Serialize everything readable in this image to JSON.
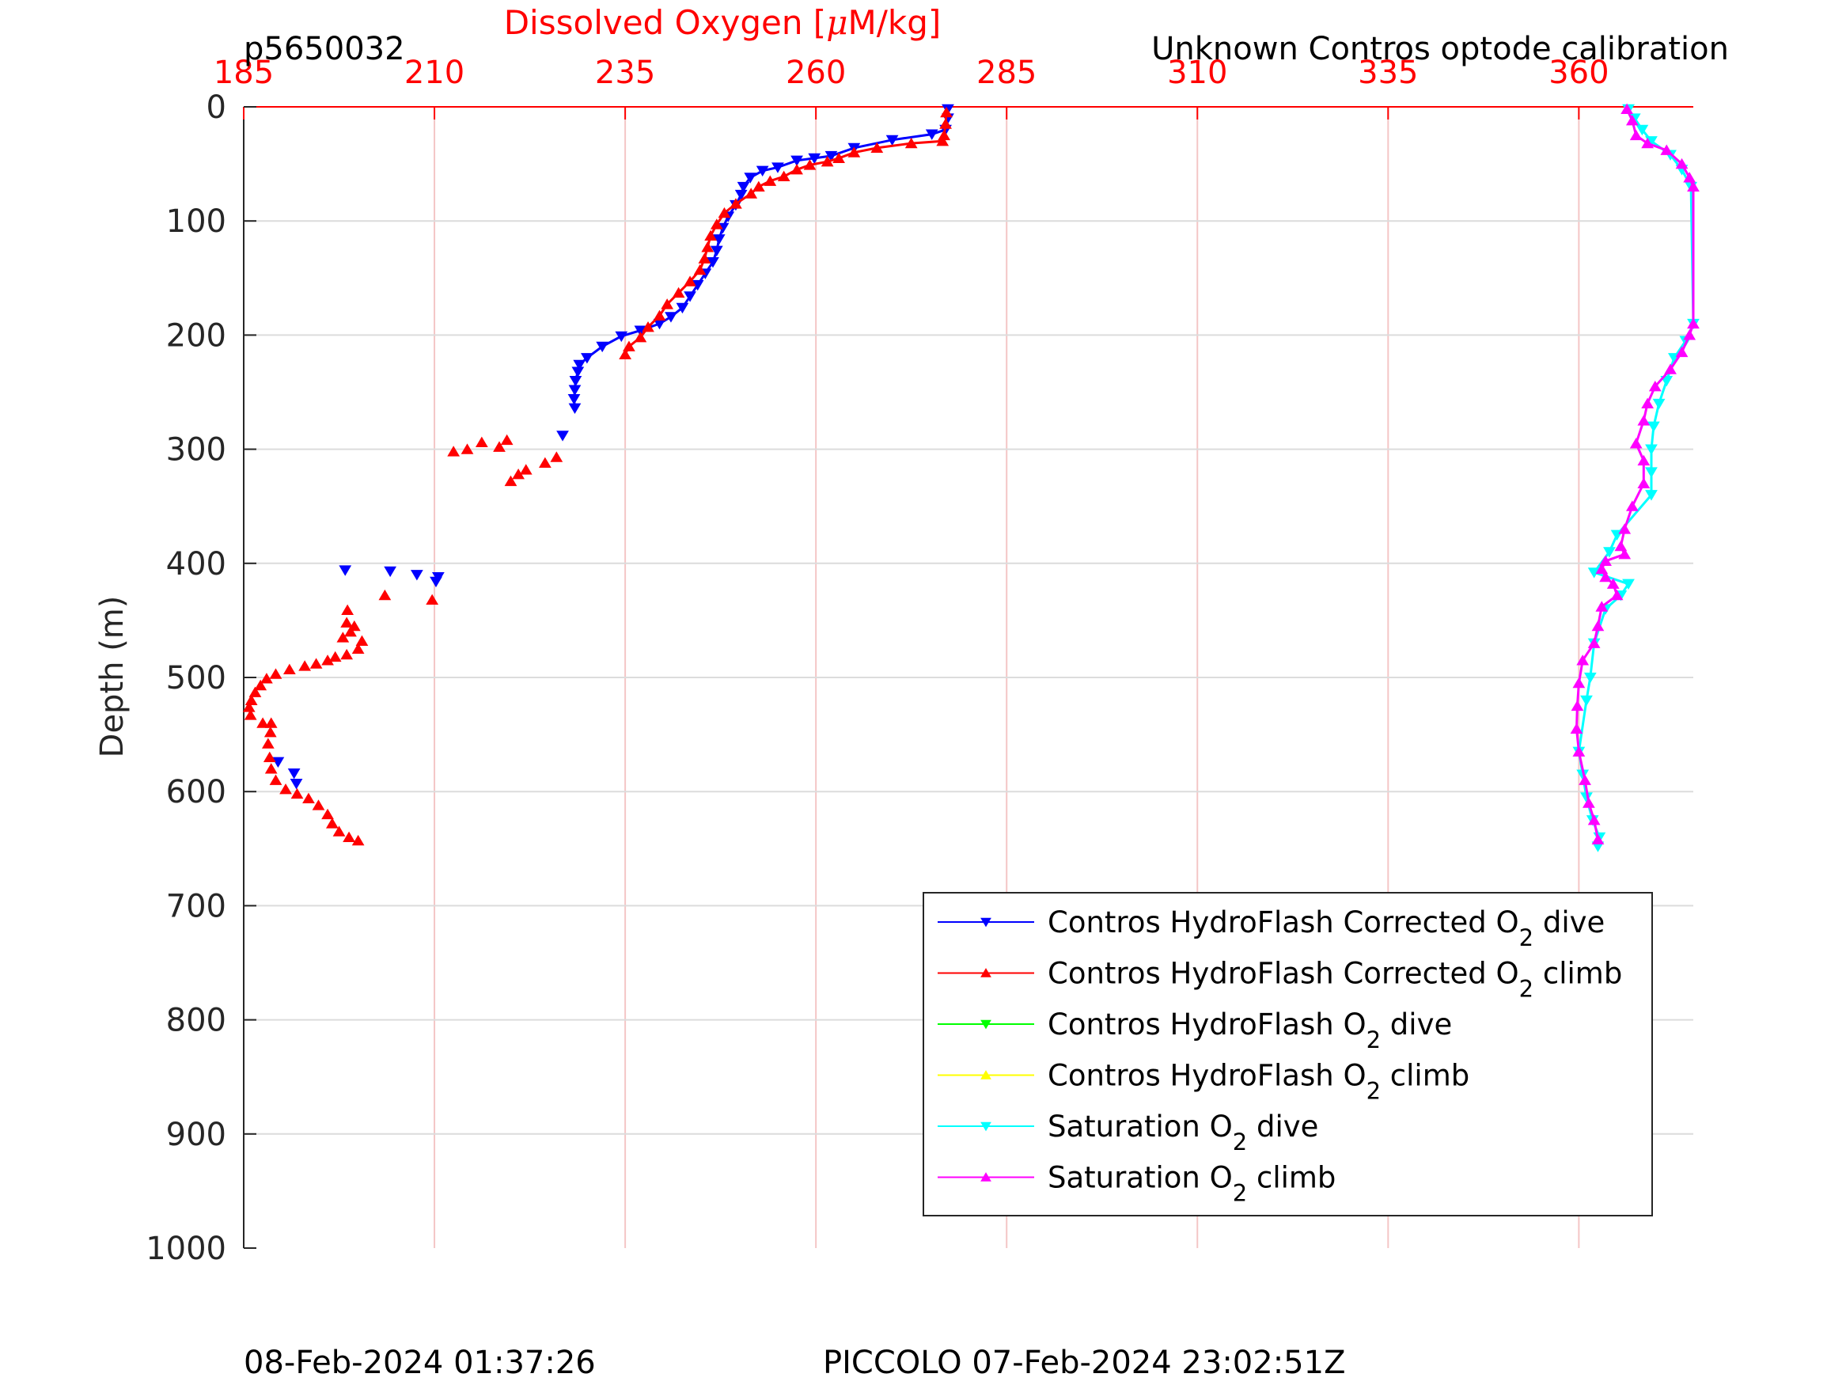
{
  "header": {
    "profile_id": "p5650032",
    "calibration_note": "Unknown Contros optode calibration"
  },
  "footer": {
    "plot_time": "08-Feb-2024 01:37:26",
    "mission_label": "PICCOLO 07-Feb-2024 23:02:51Z"
  },
  "colors": {
    "top_axis": "#ff0000",
    "grid_x": "#f4c6c6",
    "grid_y": "#dcdcdc",
    "text": "#262626"
  },
  "chart_data": {
    "type": "scatter",
    "title": "",
    "xlabel_prefix": "Dissolved Oxygen [",
    "xlabel_mu": "μ",
    "xlabel_suffix": "M/kg]",
    "ylabel": "Depth (m)",
    "xlim": [
      185,
      375
    ],
    "ylim": [
      0,
      1000
    ],
    "y_reversed": true,
    "x_axis_position": "top",
    "xticks": [
      185,
      210,
      235,
      260,
      285,
      310,
      335,
      360
    ],
    "yticks": [
      0,
      100,
      200,
      300,
      400,
      500,
      600,
      700,
      800,
      900,
      1000
    ],
    "grid": true,
    "legend_position": "lower-right",
    "series": [
      {
        "name": "Contros HydroFlash Corrected O",
        "sub": "2",
        "suffix": " dive",
        "color": "#0000ff",
        "marker": "down",
        "line": true,
        "points": [
          [
            277.3,
            2
          ],
          [
            277.3,
            10
          ],
          [
            277.0,
            20
          ],
          [
            275.2,
            24
          ],
          [
            270.0,
            29
          ],
          [
            265.0,
            36
          ],
          [
            262.0,
            43
          ],
          [
            259.8,
            45
          ],
          [
            257.5,
            47
          ],
          [
            255.0,
            53
          ],
          [
            253.0,
            56
          ],
          [
            251.4,
            62
          ],
          [
            250.5,
            70
          ],
          [
            250.2,
            77
          ],
          [
            249.5,
            86
          ],
          [
            248.5,
            96
          ],
          [
            247.8,
            106
          ],
          [
            247.3,
            116
          ],
          [
            247.0,
            126
          ],
          [
            246.5,
            136
          ],
          [
            245.5,
            146
          ],
          [
            244.5,
            156
          ],
          [
            243.5,
            166
          ],
          [
            242.5,
            176
          ],
          [
            241.0,
            184
          ],
          [
            239.5,
            190
          ],
          [
            237.0,
            196
          ],
          [
            234.5,
            201
          ],
          [
            232.0,
            210
          ],
          [
            230.0,
            220
          ],
          [
            229.0,
            226
          ],
          [
            228.8,
            232
          ],
          [
            228.5,
            240
          ],
          [
            228.4,
            248
          ],
          [
            228.3,
            256
          ],
          [
            228.4,
            264
          ]
        ],
        "sparse_points": [
          [
            226.8,
            288
          ],
          [
            198.3,
            406
          ],
          [
            204.2,
            407
          ],
          [
            207.7,
            410
          ],
          [
            210.5,
            412
          ],
          [
            210.2,
            416
          ],
          [
            189.5,
            574
          ],
          [
            191.6,
            584
          ],
          [
            191.9,
            593
          ]
        ]
      },
      {
        "name": "Contros HydroFlash Corrected O",
        "sub": "2",
        "suffix": " climb",
        "color": "#ff0000",
        "marker": "up",
        "line": true,
        "points": [
          [
            277.1,
            5
          ],
          [
            277.0,
            15
          ],
          [
            276.8,
            25
          ],
          [
            276.6,
            30
          ],
          [
            272.5,
            32
          ],
          [
            268.0,
            36
          ],
          [
            265.0,
            40
          ],
          [
            263.0,
            45
          ],
          [
            261.5,
            48
          ],
          [
            259.2,
            51
          ],
          [
            257.5,
            55
          ],
          [
            255.8,
            61
          ],
          [
            254.0,
            65
          ],
          [
            252.5,
            70
          ],
          [
            251.5,
            76
          ],
          [
            249.5,
            85
          ],
          [
            248.0,
            93
          ],
          [
            247.0,
            103
          ],
          [
            246.2,
            113
          ],
          [
            245.8,
            123
          ],
          [
            245.4,
            133
          ],
          [
            244.8,
            143
          ],
          [
            243.5,
            153
          ],
          [
            242.0,
            163
          ],
          [
            240.5,
            173
          ],
          [
            239.5,
            183
          ],
          [
            238.0,
            193
          ],
          [
            237.0,
            202
          ],
          [
            235.5,
            210
          ],
          [
            235.0,
            217
          ]
        ],
        "sparse_points": [
          [
            226.0,
            307
          ],
          [
            224.5,
            312
          ],
          [
            222.0,
            318
          ],
          [
            221.0,
            322
          ],
          [
            220.0,
            328
          ],
          [
            218.5,
            298
          ],
          [
            216.2,
            294
          ],
          [
            214.3,
            300
          ],
          [
            212.5,
            302
          ],
          [
            219.5,
            292
          ],
          [
            203.5,
            428
          ],
          [
            209.7,
            432
          ],
          [
            198.6,
            441
          ],
          [
            198.5,
            452
          ],
          [
            199.5,
            455
          ],
          [
            199.0,
            460
          ],
          [
            198.0,
            465
          ],
          [
            200.5,
            468
          ],
          [
            200.0,
            475
          ],
          [
            198.5,
            480
          ],
          [
            197.0,
            482
          ],
          [
            196.0,
            485
          ],
          [
            194.5,
            488
          ],
          [
            193.0,
            490
          ],
          [
            191.0,
            493
          ],
          [
            189.2,
            497
          ],
          [
            188.0,
            501
          ],
          [
            187.2,
            507
          ],
          [
            186.5,
            513
          ],
          [
            186.0,
            520
          ],
          [
            185.7,
            526
          ],
          [
            185.9,
            533
          ],
          [
            187.5,
            540
          ],
          [
            188.6,
            540
          ],
          [
            188.5,
            548
          ],
          [
            188.2,
            558
          ],
          [
            188.4,
            570
          ],
          [
            188.6,
            580
          ],
          [
            189.2,
            590
          ],
          [
            190.5,
            598
          ],
          [
            192.0,
            602
          ],
          [
            193.5,
            606
          ],
          [
            194.8,
            612
          ],
          [
            196.0,
            620
          ],
          [
            196.6,
            628
          ],
          [
            197.5,
            635
          ],
          [
            198.8,
            640
          ],
          [
            200.0,
            643
          ]
        ]
      },
      {
        "name": "Contros HydroFlash O",
        "sub": "2",
        "suffix": " dive",
        "color": "#00ff00",
        "marker": "down",
        "line": true,
        "points": [],
        "sparse_points": []
      },
      {
        "name": "Contros HydroFlash O",
        "sub": "2",
        "suffix": " climb",
        "color": "#ffff00",
        "marker": "up",
        "line": true,
        "points": [],
        "sparse_points": []
      },
      {
        "name": "Saturation O",
        "sub": "2",
        "suffix": " dive",
        "color": "#00ffff",
        "marker": "down",
        "line": true,
        "points": [
          [
            366.5,
            2
          ],
          [
            367.3,
            10
          ],
          [
            368.3,
            20
          ],
          [
            369.5,
            30
          ],
          [
            372.0,
            42
          ],
          [
            373.5,
            55
          ],
          [
            374.7,
            70
          ],
          [
            375.0,
            190
          ],
          [
            374.0,
            205
          ],
          [
            372.5,
            220
          ],
          [
            371.5,
            240
          ],
          [
            370.5,
            260
          ],
          [
            369.8,
            280
          ],
          [
            369.5,
            300
          ],
          [
            369.5,
            320
          ],
          [
            369.5,
            340
          ],
          [
            365.0,
            375
          ],
          [
            364.0,
            390
          ],
          [
            362.0,
            408
          ],
          [
            366.5,
            418
          ],
          [
            365.5,
            428
          ],
          [
            363.5,
            440
          ],
          [
            362.0,
            470
          ],
          [
            361.5,
            500
          ],
          [
            361.0,
            520
          ],
          [
            360.0,
            565
          ],
          [
            360.5,
            585
          ],
          [
            361.0,
            605
          ],
          [
            361.8,
            625
          ],
          [
            362.7,
            640
          ],
          [
            362.5,
            648
          ]
        ],
        "sparse_points": []
      },
      {
        "name": "Saturation O",
        "sub": "2",
        "suffix": " climb",
        "color": "#ff00ff",
        "marker": "up",
        "line": true,
        "points": [
          [
            366.3,
            2
          ],
          [
            367.0,
            12
          ],
          [
            367.5,
            25
          ],
          [
            369.0,
            32
          ],
          [
            371.5,
            38
          ],
          [
            373.5,
            50
          ],
          [
            374.5,
            62
          ],
          [
            375.0,
            70
          ],
          [
            375.0,
            190
          ],
          [
            374.5,
            200
          ],
          [
            373.5,
            215
          ],
          [
            372.0,
            230
          ],
          [
            370.0,
            245
          ],
          [
            369.0,
            260
          ],
          [
            368.5,
            275
          ],
          [
            367.5,
            295
          ],
          [
            368.5,
            310
          ],
          [
            368.5,
            330
          ],
          [
            367.0,
            350
          ],
          [
            366.0,
            370
          ],
          [
            365.5,
            385
          ],
          [
            366.0,
            392
          ],
          [
            363.5,
            398
          ],
          [
            363.0,
            405
          ],
          [
            363.5,
            412
          ],
          [
            364.5,
            418
          ],
          [
            365.0,
            428
          ],
          [
            363.0,
            438
          ],
          [
            362.5,
            455
          ],
          [
            362.0,
            470
          ],
          [
            360.5,
            485
          ],
          [
            360.0,
            505
          ],
          [
            359.8,
            525
          ],
          [
            359.7,
            545
          ],
          [
            360.0,
            565
          ],
          [
            360.8,
            590
          ],
          [
            361.3,
            610
          ],
          [
            362.0,
            625
          ],
          [
            362.5,
            642
          ]
        ],
        "sparse_points": []
      }
    ]
  }
}
